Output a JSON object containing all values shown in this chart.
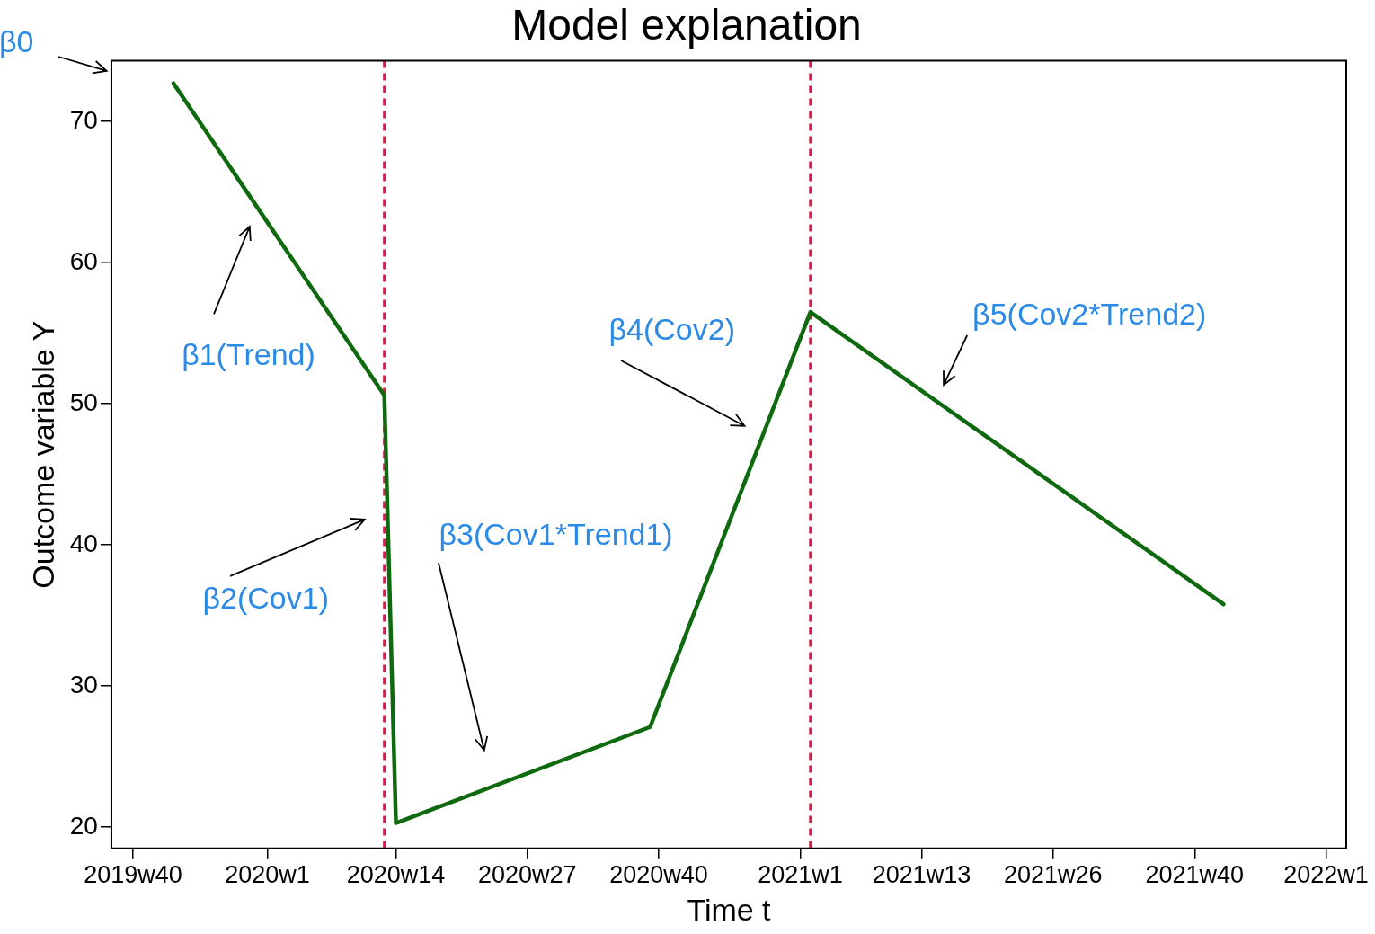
{
  "chart_data": {
    "type": "line",
    "title": "Model explanation",
    "xlabel": "Time t",
    "ylabel": "Outcome variable Y",
    "x": [
      "2019-10-28",
      "2020-03-22",
      "2020-03-30",
      "2020-09-22",
      "2021-01-11",
      "2021-10-24"
    ],
    "series": [
      {
        "color": "#0f6a0f",
        "values": [
          72.7,
          50.6,
          20.3,
          27.1,
          56.5,
          35.8
        ]
      }
    ],
    "xlim": [
      "2019-09-15",
      "2022-01-17"
    ],
    "ylim": [
      18.5,
      74.3
    ],
    "xticks": [
      {
        "value": "2019-09-30",
        "label": "2019w40"
      },
      {
        "value": "2020-01-01",
        "label": "2020w1"
      },
      {
        "value": "2020-03-30",
        "label": "2020w14"
      },
      {
        "value": "2020-06-29",
        "label": "2020w27"
      },
      {
        "value": "2020-09-28",
        "label": "2020w40"
      },
      {
        "value": "2021-01-04",
        "label": "2021w1"
      },
      {
        "value": "2021-03-29",
        "label": "2021w13"
      },
      {
        "value": "2021-06-28",
        "label": "2021w26"
      },
      {
        "value": "2021-10-04",
        "label": "2021w40"
      },
      {
        "value": "2022-01-03",
        "label": "2022w1"
      }
    ],
    "yticks": [
      20,
      30,
      40,
      50,
      60,
      70
    ],
    "ref_lines": [
      {
        "axis": "x",
        "value": "2020-03-22",
        "color": "#d0204a",
        "line_style": "dashed"
      },
      {
        "axis": "x",
        "value": "2021-01-11",
        "color": "#d0204a",
        "line_style": "dashed"
      }
    ],
    "annotations": [
      "β0",
      "β1(Trend)",
      "β2(Cov1)",
      "β3(Cov1*Trend1)",
      "β4(Cov2)",
      "β5(Cov2*Trend2)"
    ],
    "grid": false,
    "legend": false,
    "marker": "none",
    "line_style": "solid"
  }
}
